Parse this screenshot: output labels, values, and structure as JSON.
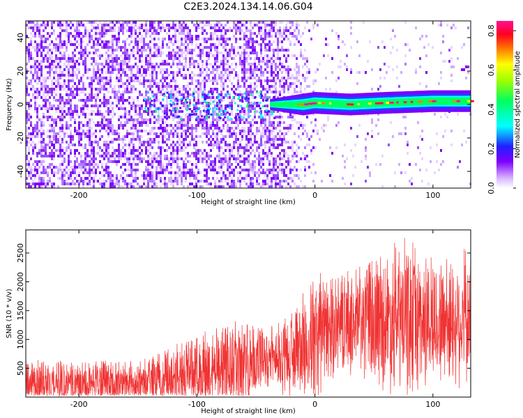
{
  "title": "C2E3.2024.134.14.06.G04",
  "chart_data": [
    {
      "type": "heatmap",
      "xlabel": "Height of straight line (km)",
      "ylabel": "Frequency (Hz)",
      "xlim": [
        -245,
        132
      ],
      "ylim": [
        -50,
        50
      ],
      "xticks": [
        -200,
        -100,
        0,
        100
      ],
      "xtick_labels": [
        "-200",
        "-100",
        "0",
        "100"
      ],
      "yticks": [
        -40,
        -20,
        0,
        20,
        40
      ],
      "ytick_labels": [
        "-40",
        "-20",
        "0",
        "20",
        "40"
      ],
      "colorbar": {
        "label": "Normalized spectral amplitude",
        "range": [
          0,
          0.85
        ],
        "ticks": [
          0.0,
          0.2,
          0.4,
          0.6,
          0.8
        ],
        "tick_labels": [
          "0.0",
          "0.2",
          "0.4",
          "0.6",
          "0.8"
        ],
        "colormap": "white-purple-blue-cyan-green-yellow-red-magenta"
      },
      "features": {
        "carrier_line_frequency_hz": [
          [
            -35,
            0
          ],
          [
            -10,
            0
          ],
          [
            0,
            1
          ],
          [
            30,
            0
          ],
          [
            60,
            1
          ],
          [
            100,
            2
          ],
          [
            132,
            2
          ]
        ],
        "noise_region_km": [
          -245,
          -20
        ],
        "clear_region_km": [
          0,
          132
        ]
      },
      "grid": false
    },
    {
      "type": "line",
      "xlabel": "Height of straight line (km)",
      "ylabel": "SNR (10 * v/v)",
      "xlim": [
        -245,
        132
      ],
      "ylim": [
        0,
        2900
      ],
      "xticks": [
        -200,
        -100,
        0,
        100
      ],
      "xtick_labels": [
        "-200",
        "-100",
        "0",
        "100"
      ],
      "yticks": [
        500,
        1000,
        1500,
        2000,
        2500
      ],
      "ytick_labels": [
        "500",
        "1000",
        "1500",
        "2000",
        "2500"
      ],
      "color": "#f03232",
      "envelope": {
        "x": [
          -245,
          -200,
          -150,
          -130,
          -100,
          -80,
          -60,
          -40,
          -20,
          0,
          20,
          50,
          80,
          100,
          132
        ],
        "mean": [
          200,
          220,
          230,
          260,
          400,
          500,
          550,
          650,
          700,
          1000,
          1250,
          1300,
          1350,
          1300,
          1350
        ],
        "peak": [
          650,
          620,
          650,
          800,
          1100,
          1300,
          1400,
          1200,
          1500,
          2200,
          2100,
          2500,
          2850,
          2500,
          2600
        ]
      },
      "grid": false
    }
  ]
}
